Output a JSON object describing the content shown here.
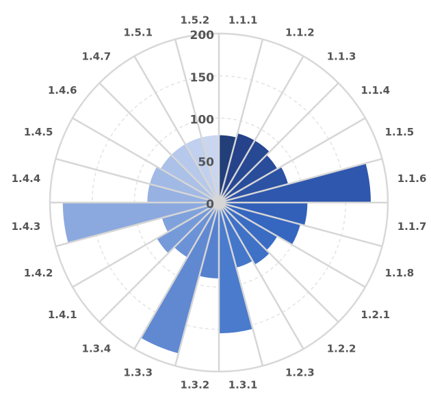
{
  "chart_data": {
    "type": "polar-bar",
    "title": "",
    "rlim": [
      0,
      200
    ],
    "r_ticks": [
      0,
      50,
      100,
      150,
      200
    ],
    "grid": true,
    "categories": [
      "1.1.1",
      "1.1.2",
      "1.1.3",
      "1.1.4",
      "1.1.5",
      "1.1.6",
      "1.1.7",
      "1.1.8",
      "1.2.1",
      "1.2.2",
      "1.2.3",
      "1.3.1",
      "1.3.2",
      "1.3.3",
      "1.3.4",
      "1.4.1",
      "1.4.2",
      "1.4.3",
      "1.4.4",
      "1.4.5",
      "1.4.6",
      "1.4.7",
      "1.5.1",
      "1.5.2"
    ],
    "values": [
      80,
      85,
      85,
      80,
      85,
      180,
      105,
      100,
      80,
      85,
      80,
      155,
      90,
      185,
      75,
      85,
      70,
      185,
      85,
      85,
      80,
      80,
      80,
      80
    ],
    "colors": [
      "#223f7a",
      "#25428a",
      "#274892",
      "#294d9b",
      "#2c52a4",
      "#2f57ad",
      "#3260b8",
      "#3566c0",
      "#3a6cc4",
      "#3f71c7",
      "#4476ca",
      "#4a7bcd",
      "#5581cf",
      "#6089d2",
      "#6b92d6",
      "#759ad9",
      "#80a2dc",
      "#8ba9df",
      "#96b1e2",
      "#a1b9e5",
      "#acc1e8",
      "#b6c8eb",
      "#c0d0ee",
      "#cad6f0"
    ]
  }
}
